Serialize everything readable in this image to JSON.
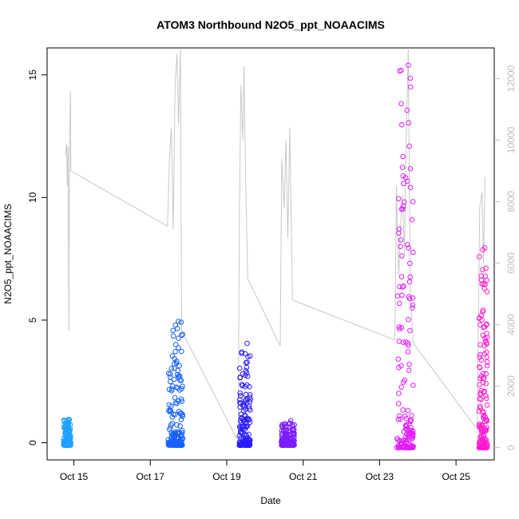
{
  "chart_data": {
    "type": "scatter",
    "title": "ATOM3 Northbound N2O5_ppt_NOAACIMS",
    "xlabel": "Date",
    "ylabel": "N2O5_ppt_NOAACIMS",
    "x_ticks": [
      "Oct 15",
      "Oct 17",
      "Oct 19",
      "Oct 21",
      "Oct 23",
      "Oct 25"
    ],
    "x_tick_values": [
      15,
      17,
      19,
      21,
      23,
      25
    ],
    "xlim": [
      14.3,
      26.0
    ],
    "y_ticks": [
      0,
      5,
      10,
      15
    ],
    "ylim": [
      -0.7,
      16.1
    ],
    "y2_ticks": [
      0,
      2000,
      4000,
      6000,
      8000,
      10000,
      12000
    ],
    "y2lim": [
      -400,
      13000
    ],
    "grid": false,
    "colors": {
      "series1": "#1ea0ff",
      "series2": "#1460ff",
      "series3": "#2a1cff",
      "series4": "#7a1cff",
      "series5": "#e21cff",
      "series6": "#ff1cd0",
      "altitude_line": "#c8c8c8",
      "right_axis": "#bdbdbd"
    },
    "series": [
      {
        "date": "Oct 15",
        "x_range": [
          14.73,
          14.92
        ],
        "y_range": [
          -0.1,
          0.95
        ],
        "color": "#1ea0ff"
      },
      {
        "date": "Oct 17",
        "x_range": [
          17.47,
          17.85
        ],
        "y_range": [
          -0.1,
          4.95
        ],
        "color": "#1460ff"
      },
      {
        "date": "Oct 19",
        "x_range": [
          19.33,
          19.62
        ],
        "y_range": [
          -0.1,
          4.05
        ],
        "color": "#2a1cff"
      },
      {
        "date": "Oct 20",
        "x_range": [
          20.43,
          20.78
        ],
        "y_range": [
          -0.1,
          0.9
        ],
        "color": "#7a1cff"
      },
      {
        "date": "Oct 23",
        "x_range": [
          23.45,
          23.88
        ],
        "y_range": [
          -0.2,
          15.4
        ],
        "color": "#e21cff"
      },
      {
        "date": "Oct 25",
        "x_range": [
          25.6,
          25.82
        ],
        "y_range": [
          -0.2,
          7.95
        ],
        "color": "#ff1cd0"
      }
    ],
    "altitude_line_y2": [
      [
        14.78,
        9500
      ],
      [
        14.81,
        9900
      ],
      [
        14.83,
        8500
      ],
      [
        14.85,
        9800
      ],
      [
        14.87,
        3800
      ],
      [
        14.89,
        10200
      ],
      [
        14.91,
        11600
      ],
      [
        14.92,
        9000
      ],
      [
        17.45,
        7200
      ],
      [
        17.5,
        9400
      ],
      [
        17.55,
        10400
      ],
      [
        17.6,
        7100
      ],
      [
        17.65,
        11800
      ],
      [
        17.7,
        12800
      ],
      [
        17.74,
        10500
      ],
      [
        17.79,
        13000
      ],
      [
        17.82,
        3800
      ],
      [
        19.3,
        200
      ],
      [
        19.33,
        7500
      ],
      [
        19.37,
        11800
      ],
      [
        19.42,
        10000
      ],
      [
        19.45,
        12400
      ],
      [
        19.5,
        8400
      ],
      [
        19.55,
        5500
      ],
      [
        20.4,
        3300
      ],
      [
        20.44,
        9400
      ],
      [
        20.5,
        7800
      ],
      [
        20.55,
        10000
      ],
      [
        20.6,
        6800
      ],
      [
        20.65,
        10400
      ],
      [
        20.72,
        4800
      ],
      [
        23.4,
        3500
      ],
      [
        23.44,
        8500
      ],
      [
        23.5,
        5600
      ],
      [
        23.55,
        7300
      ],
      [
        23.6,
        8200
      ],
      [
        23.65,
        6300
      ],
      [
        23.7,
        10200
      ],
      [
        23.75,
        13000
      ],
      [
        23.8,
        5200
      ],
      [
        23.88,
        3400
      ],
      [
        25.55,
        600
      ],
      [
        25.62,
        7800
      ],
      [
        25.68,
        8300
      ],
      [
        25.72,
        6000
      ],
      [
        25.76,
        8800
      ]
    ]
  }
}
